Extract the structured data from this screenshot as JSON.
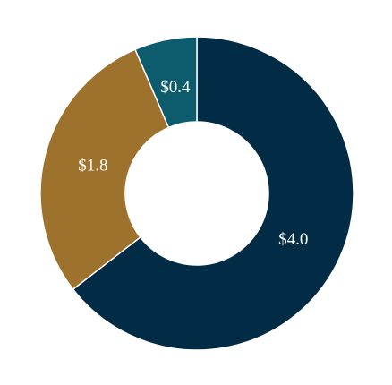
{
  "chart_data": {
    "type": "donut",
    "categories": [
      null,
      null,
      null
    ],
    "values": [
      4.0,
      1.8,
      0.4
    ],
    "value_labels": [
      "$4.0",
      "$1.8",
      "$0.4"
    ],
    "colors": [
      "#022c45",
      "#9c722d",
      "#0d5c6e"
    ]
  }
}
